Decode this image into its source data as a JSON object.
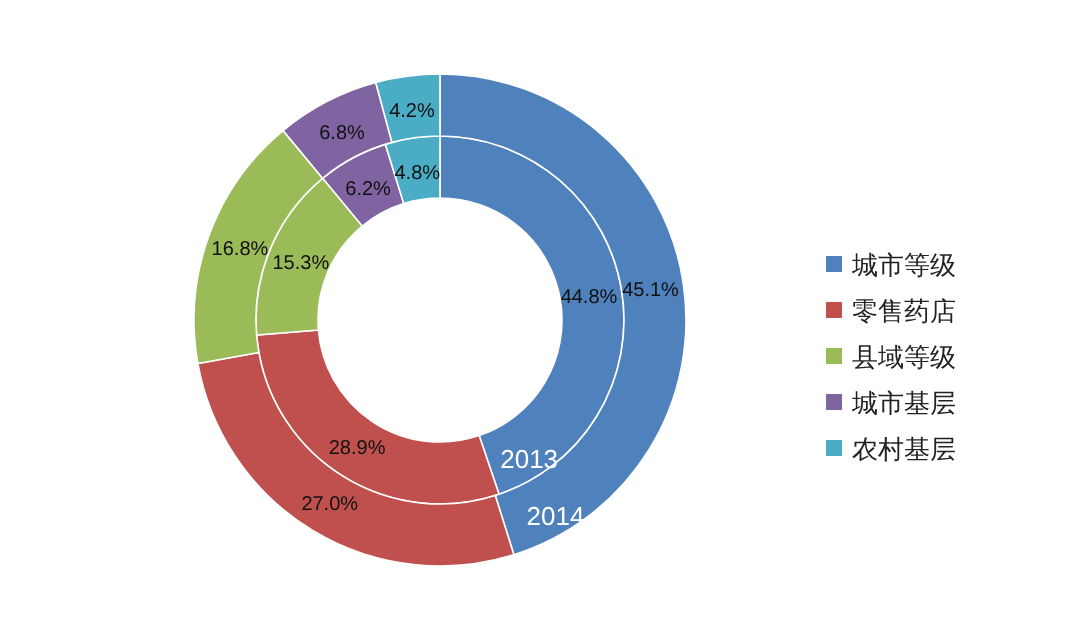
{
  "chart_data": {
    "type": "donut",
    "categories": [
      "城市等级",
      "零售药店",
      "县域等级",
      "城市基层",
      "农村基层"
    ],
    "colors": [
      "#4f81bd",
      "#c0504d",
      "#9bbb59",
      "#8064a2",
      "#4bacc6"
    ],
    "series": [
      {
        "name": "2013",
        "values": [
          44.8,
          28.9,
          15.3,
          6.2,
          4.8
        ],
        "value_labels": [
          "44.8%",
          "28.9%",
          "15.3%",
          "6.2%",
          "4.8%"
        ]
      },
      {
        "name": "2014",
        "values": [
          45.1,
          27.0,
          16.8,
          6.8,
          4.2
        ],
        "value_labels": [
          "45.1%",
          "27.0%",
          "16.8%",
          "6.8%",
          "4.2%"
        ]
      }
    ],
    "legend": "right"
  }
}
